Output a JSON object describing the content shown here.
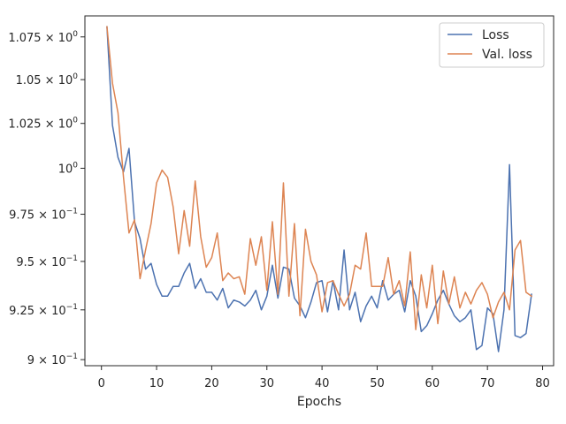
{
  "chart_data": {
    "type": "line",
    "title": "",
    "xlabel": "Epochs",
    "ylabel": "",
    "xlim": [
      -3,
      82
    ],
    "ylim": [
      0.897,
      1.0875
    ],
    "y_scale": "log",
    "x_ticks": [
      0,
      10,
      20,
      30,
      40,
      50,
      60,
      70,
      80
    ],
    "x_tick_labels": [
      "0",
      "10",
      "20",
      "30",
      "40",
      "50",
      "60",
      "70",
      "80"
    ],
    "y_ticks": [
      0.9,
      0.925,
      0.95,
      0.975,
      1.0,
      1.025,
      1.05,
      1.075
    ],
    "y_tick_labels": [
      {
        "base": "9 × 10",
        "exp": "−1"
      },
      {
        "base": "9.25 × 10",
        "exp": "−1"
      },
      {
        "base": "9.5 × 10",
        "exp": "−1"
      },
      {
        "base": "9.75 × 10",
        "exp": "−1"
      },
      {
        "base": "10",
        "exp": "0"
      },
      {
        "base": "1.025 × 10",
        "exp": "0"
      },
      {
        "base": "1.05 × 10",
        "exp": "0"
      },
      {
        "base": "1.075 × 10",
        "exp": "0"
      }
    ],
    "grid": false,
    "legend_position": "top-right",
    "x": [
      1,
      2,
      3,
      4,
      5,
      6,
      7,
      8,
      9,
      10,
      11,
      12,
      13,
      14,
      15,
      16,
      17,
      18,
      19,
      20,
      21,
      22,
      23,
      24,
      25,
      26,
      27,
      28,
      29,
      30,
      31,
      32,
      33,
      34,
      35,
      36,
      37,
      38,
      39,
      40,
      41,
      42,
      43,
      44,
      45,
      46,
      47,
      48,
      49,
      50,
      51,
      52,
      53,
      54,
      55,
      56,
      57,
      58,
      59,
      60,
      61,
      62,
      63,
      64,
      65,
      66,
      67,
      68,
      69,
      70,
      71,
      72,
      73,
      74,
      75,
      76,
      77,
      78
    ],
    "series": [
      {
        "name": "Loss",
        "color": "#4c72b0",
        "values": [
          1.081,
          1.024,
          1.006,
          0.998,
          1.011,
          0.971,
          0.962,
          0.946,
          0.949,
          0.938,
          0.932,
          0.932,
          0.937,
          0.937,
          0.944,
          0.949,
          0.936,
          0.941,
          0.934,
          0.934,
          0.93,
          0.936,
          0.926,
          0.93,
          0.929,
          0.927,
          0.93,
          0.935,
          0.925,
          0.932,
          0.948,
          0.931,
          0.947,
          0.946,
          0.931,
          0.927,
          0.921,
          0.929,
          0.939,
          0.94,
          0.924,
          0.94,
          0.925,
          0.956,
          0.925,
          0.934,
          0.919,
          0.927,
          0.932,
          0.926,
          0.94,
          0.93,
          0.933,
          0.935,
          0.924,
          0.94,
          0.932,
          0.914,
          0.917,
          0.923,
          0.93,
          0.935,
          0.928,
          0.922,
          0.919,
          0.921,
          0.925,
          0.905,
          0.907,
          0.926,
          0.923,
          0.904,
          0.925,
          1.002,
          0.912,
          0.911,
          0.913,
          0.933
        ]
      },
      {
        "name": "Val. loss",
        "color": "#dd8452",
        "values": [
          1.081,
          1.048,
          1.031,
          0.995,
          0.965,
          0.972,
          0.941,
          0.956,
          0.97,
          0.992,
          0.999,
          0.995,
          0.979,
          0.954,
          0.977,
          0.958,
          0.993,
          0.963,
          0.947,
          0.952,
          0.965,
          0.94,
          0.944,
          0.941,
          0.942,
          0.933,
          0.962,
          0.948,
          0.963,
          0.935,
          0.971,
          0.933,
          0.992,
          0.932,
          0.97,
          0.922,
          0.967,
          0.95,
          0.943,
          0.924,
          0.939,
          0.94,
          0.933,
          0.927,
          0.933,
          0.948,
          0.946,
          0.965,
          0.937,
          0.937,
          0.937,
          0.952,
          0.933,
          0.94,
          0.927,
          0.955,
          0.915,
          0.943,
          0.926,
          0.948,
          0.918,
          0.945,
          0.928,
          0.942,
          0.926,
          0.934,
          0.928,
          0.935,
          0.939,
          0.933,
          0.921,
          0.929,
          0.934,
          0.925,
          0.956,
          0.961,
          0.934,
          0.932
        ]
      }
    ]
  }
}
